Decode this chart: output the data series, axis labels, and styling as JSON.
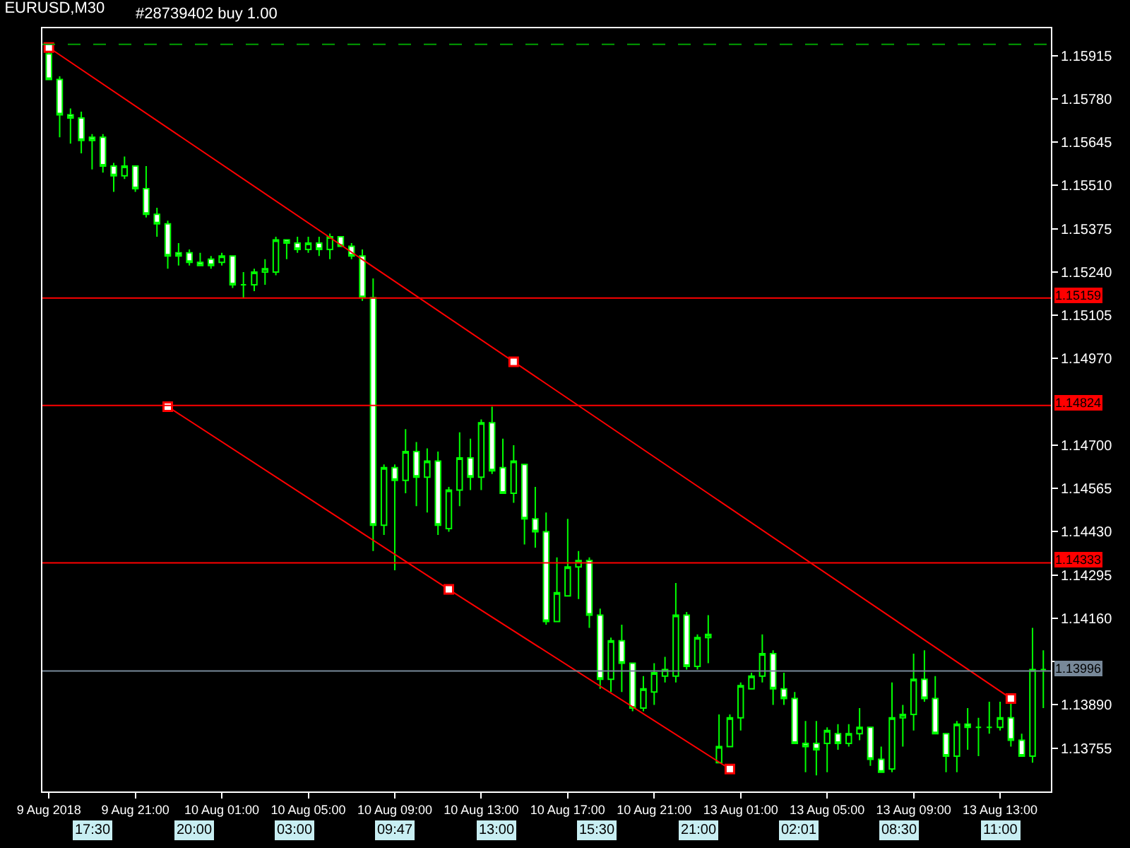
{
  "chart_data": {
    "type": "candlestick",
    "title": "EURUSD,M30",
    "color": "#00ff00",
    "categories": [
      "9 Aug 2018",
      null,
      null,
      null,
      null,
      null,
      null,
      null,
      "9 Aug 21:00",
      null,
      null,
      null,
      null,
      null,
      null,
      null,
      "10 Aug 01:00",
      null,
      null,
      null,
      null,
      null,
      null,
      null,
      "10 Aug 05:00",
      null,
      null,
      null,
      null,
      null,
      null,
      null,
      "10 Aug 09:00",
      null,
      null,
      null,
      null,
      null,
      null,
      null,
      "10 Aug 13:00",
      null,
      null,
      null,
      null,
      null,
      null,
      null,
      "10 Aug 17:00",
      null,
      null,
      null,
      null,
      null,
      null,
      null,
      "10 Aug 21:00",
      null,
      null,
      null,
      null,
      null,
      null,
      null,
      "13 Aug 01:00",
      null,
      null,
      null,
      null,
      null,
      null,
      null,
      "13 Aug 05:00",
      null,
      null,
      null,
      null,
      null,
      null,
      null,
      "13 Aug 09:00",
      null,
      null,
      null,
      null,
      null,
      null,
      null,
      "13 Aug 13:00",
      null,
      null,
      null,
      null
    ],
    "ohlc": [
      [
        1.1592,
        1.1593,
        1.1584,
        1.1584
      ],
      [
        1.1584,
        1.1585,
        1.1566,
        1.1573
      ],
      [
        1.1573,
        1.1575,
        1.1564,
        1.1572
      ],
      [
        1.1572,
        1.1574,
        1.1561,
        1.1565
      ],
      [
        1.1566,
        1.1567,
        1.1556,
        1.1565
      ],
      [
        1.1566,
        1.1567,
        1.1555,
        1.1557
      ],
      [
        1.1557,
        1.1558,
        1.1549,
        1.1554
      ],
      [
        1.1554,
        1.156,
        1.1553,
        1.1557
      ],
      [
        1.1557,
        1.1557,
        1.1549,
        1.155
      ],
      [
        1.155,
        1.1557,
        1.1541,
        1.1542
      ],
      [
        1.1542,
        1.1544,
        1.1535,
        1.1539
      ],
      [
        1.1539,
        1.154,
        1.1525,
        1.1529
      ],
      [
        1.153,
        1.1533,
        1.1526,
        1.1529
      ],
      [
        1.153,
        1.1531,
        1.1526,
        1.1527
      ],
      [
        1.1527,
        1.153,
        1.1526,
        1.1526
      ],
      [
        1.1528,
        1.1529,
        1.1525,
        1.1526
      ],
      [
        1.1527,
        1.153,
        1.1526,
        1.1529
      ],
      [
        1.1529,
        1.1529,
        1.1519,
        1.152
      ],
      [
        1.152,
        1.1524,
        1.1516,
        1.152
      ],
      [
        1.152,
        1.1525,
        1.1518,
        1.1524
      ],
      [
        1.1524,
        1.1528,
        1.152,
        1.1525
      ],
      [
        1.1524,
        1.1535,
        1.1523,
        1.1534
      ],
      [
        1.1534,
        1.1534,
        1.1528,
        1.1533
      ],
      [
        1.1533,
        1.1535,
        1.153,
        1.1531
      ],
      [
        1.1531,
        1.1535,
        1.153,
        1.1533
      ],
      [
        1.1533,
        1.1535,
        1.1529,
        1.1531
      ],
      [
        1.1531,
        1.1536,
        1.1528,
        1.1535
      ],
      [
        1.1535,
        1.1535,
        1.1532,
        1.1532
      ],
      [
        1.1532,
        1.1533,
        1.1528,
        1.1529
      ],
      [
        1.1529,
        1.1531,
        1.1515,
        1.1516
      ],
      [
        1.1516,
        1.1522,
        1.1437,
        1.1445
      ],
      [
        1.1445,
        1.1464,
        1.1442,
        1.1463
      ],
      [
        1.1463,
        1.1464,
        1.1431,
        1.1459
      ],
      [
        1.1459,
        1.1475,
        1.1455,
        1.1468
      ],
      [
        1.1468,
        1.1471,
        1.1451,
        1.146
      ],
      [
        1.146,
        1.1469,
        1.1449,
        1.1465
      ],
      [
        1.1465,
        1.1468,
        1.1442,
        1.1445
      ],
      [
        1.1444,
        1.1457,
        1.1443,
        1.1456
      ],
      [
        1.1456,
        1.1474,
        1.1451,
        1.1466
      ],
      [
        1.1466,
        1.1472,
        1.1456,
        1.146
      ],
      [
        1.146,
        1.1478,
        1.1456,
        1.1477
      ],
      [
        1.1477,
        1.1482,
        1.1461,
        1.1462
      ],
      [
        1.1463,
        1.1472,
        1.1455,
        1.1455
      ],
      [
        1.1455,
        1.147,
        1.1452,
        1.1465
      ],
      [
        1.1464,
        1.1464,
        1.1439,
        1.1447
      ],
      [
        1.1447,
        1.1457,
        1.1438,
        1.1443
      ],
      [
        1.1443,
        1.1449,
        1.1414,
        1.1415
      ],
      [
        1.1415,
        1.1435,
        1.1415,
        1.1424
      ],
      [
        1.1423,
        1.1447,
        1.1423,
        1.1432
      ],
      [
        1.1432,
        1.1437,
        1.1422,
        1.1434
      ],
      [
        1.1434,
        1.1435,
        1.1413,
        1.1417
      ],
      [
        1.1417,
        1.1419,
        1.1394,
        1.1397
      ],
      [
        1.1397,
        1.141,
        1.1393,
        1.1409
      ],
      [
        1.1409,
        1.1414,
        1.1393,
        1.1402
      ],
      [
        1.1402,
        1.1402,
        1.1387,
        1.1388
      ],
      [
        1.1388,
        1.1398,
        1.1387,
        1.1394
      ],
      [
        1.1393,
        1.1402,
        1.1389,
        1.1399
      ],
      [
        1.1398,
        1.1404,
        1.1396,
        1.14
      ],
      [
        1.1398,
        1.1427,
        1.1396,
        1.1417
      ],
      [
        1.1417,
        1.1418,
        1.14,
        1.1401
      ],
      [
        1.1401,
        1.1411,
        1.14,
        1.141
      ],
      [
        1.141,
        1.1417,
        1.1402,
        1.1411
      ],
      [
        1.1371,
        1.1386,
        1.1371,
        1.1376
      ],
      [
        1.1376,
        1.1386,
        1.1376,
        1.1385
      ],
      [
        1.1385,
        1.1396,
        1.1381,
        1.1395
      ],
      [
        1.1394,
        1.1399,
        1.1394,
        1.1398
      ],
      [
        1.1398,
        1.1411,
        1.1396,
        1.1405
      ],
      [
        1.1405,
        1.1406,
        1.1389,
        1.1394
      ],
      [
        1.1394,
        1.1399,
        1.1389,
        1.1391
      ],
      [
        1.1391,
        1.1393,
        1.1377,
        1.1377
      ],
      [
        1.1377,
        1.1384,
        1.1368,
        1.1376
      ],
      [
        1.1377,
        1.1384,
        1.1367,
        1.1375
      ],
      [
        1.1377,
        1.1382,
        1.1368,
        1.1381
      ],
      [
        1.138,
        1.1383,
        1.1375,
        1.1377
      ],
      [
        1.1377,
        1.1383,
        1.1376,
        1.138
      ],
      [
        1.138,
        1.1388,
        1.1378,
        1.1382
      ],
      [
        1.1382,
        1.1382,
        1.137,
        1.1372
      ],
      [
        1.1372,
        1.1376,
        1.1368,
        1.1368
      ],
      [
        1.1369,
        1.1396,
        1.1368,
        1.1385
      ],
      [
        1.1385,
        1.1389,
        1.1376,
        1.1386
      ],
      [
        1.1386,
        1.1405,
        1.1381,
        1.1397
      ],
      [
        1.1397,
        1.1406,
        1.139,
        1.1391
      ],
      [
        1.1391,
        1.1398,
        1.138,
        1.138
      ],
      [
        1.138,
        1.138,
        1.1368,
        1.1373
      ],
      [
        1.1373,
        1.1384,
        1.1368,
        1.1383
      ],
      [
        1.1383,
        1.1388,
        1.1375,
        1.1382
      ],
      [
        1.1382,
        1.1385,
        1.1373,
        1.1382
      ],
      [
        1.1382,
        1.139,
        1.138,
        1.1382
      ],
      [
        1.1382,
        1.139,
        1.1381,
        1.1385
      ],
      [
        1.1385,
        1.139,
        1.1376,
        1.1378
      ],
      [
        1.1378,
        1.138,
        1.1373,
        1.1373
      ],
      [
        1.1373,
        1.1413,
        1.1371,
        1.14
      ],
      [
        1.14,
        1.1406,
        1.1388,
        1.14
      ]
    ],
    "series": [
      {
        "type": "line",
        "color": "#ff0000",
        "marker": "square",
        "values": [
          1.1594,
          null,
          null,
          null,
          null,
          null,
          null,
          null,
          null,
          null,
          null,
          null,
          null,
          null,
          null,
          null,
          null,
          null,
          null,
          null,
          null,
          null,
          null,
          null,
          null,
          null,
          null,
          null,
          null,
          null,
          null,
          null,
          null,
          null,
          null,
          null,
          null,
          null,
          null,
          null,
          null,
          null,
          null,
          1.1496,
          null,
          null,
          null,
          null,
          null,
          null,
          null,
          null,
          null,
          null,
          null,
          null,
          null,
          null,
          null,
          null,
          null,
          null,
          null,
          null,
          null,
          null,
          null,
          null,
          null,
          null,
          null,
          null,
          null,
          null,
          null,
          null,
          null,
          null,
          null,
          null,
          null,
          null,
          null,
          null,
          null,
          null,
          null,
          null,
          null,
          1.1391,
          null,
          null,
          null
        ]
      },
      {
        "type": "line",
        "color": "#ff0000",
        "marker": "square",
        "values": [
          null,
          null,
          null,
          null,
          null,
          null,
          null,
          null,
          null,
          null,
          null,
          1.1482,
          null,
          null,
          null,
          null,
          null,
          null,
          null,
          null,
          null,
          null,
          null,
          null,
          null,
          null,
          null,
          null,
          null,
          null,
          null,
          null,
          null,
          null,
          null,
          null,
          null,
          1.1425,
          null,
          null,
          null,
          null,
          null,
          null,
          null,
          null,
          null,
          null,
          null,
          null,
          null,
          null,
          null,
          null,
          null,
          null,
          null,
          null,
          null,
          null,
          null,
          null,
          null,
          1.1369,
          null,
          null,
          null,
          null,
          null,
          null,
          null,
          null,
          null,
          null,
          null,
          null,
          null,
          null,
          null,
          null,
          null,
          null,
          null,
          null,
          null,
          null,
          null,
          null,
          null,
          null,
          null,
          null,
          null
        ]
      }
    ],
    "ref_lines": [
      {
        "axis": "y",
        "value": 1.1595,
        "label": "#28739402 buy 1.00",
        "color": "#00a000",
        "line_style": "dashed"
      },
      {
        "axis": "y",
        "value": 1.15159,
        "label": "1.15159",
        "color": "#ff0000"
      },
      {
        "axis": "y",
        "value": 1.14824,
        "label": "1.14824",
        "color": "#ff0000"
      },
      {
        "axis": "y",
        "value": 1.14333,
        "label": "1.14333",
        "color": "#ff0000"
      },
      {
        "axis": "y",
        "value": 1.13996,
        "label": "1.13996",
        "color": "#778899"
      }
    ],
    "annotations": [
      "17:30",
      "20:00",
      "03:00",
      "09:47",
      "13:00",
      "15:30",
      "21:00",
      "02:01",
      "08:30",
      "11:00"
    ],
    "ylim": [
      1.1362,
      1.16
    ],
    "yticks": [
      1.15915,
      {
        "value": 1.1578,
        "label": "1.15780"
      },
      1.15645,
      {
        "value": 1.1551,
        "label": "1.15510"
      },
      1.15375,
      {
        "value": 1.1524,
        "label": "1.15240"
      },
      1.15105,
      {
        "value": 1.1497,
        "label": "1.14970"
      },
      {
        "value": 1.147,
        "label": "1.14700"
      },
      1.14565,
      {
        "value": 1.1443,
        "label": "1.14430"
      },
      1.14295,
      {
        "value": 1.1416,
        "label": "1.14160"
      },
      {
        "value": 1.14025,
        "label": null
      },
      {
        "value": 1.1389,
        "label": "1.13890"
      },
      1.13755
    ]
  }
}
